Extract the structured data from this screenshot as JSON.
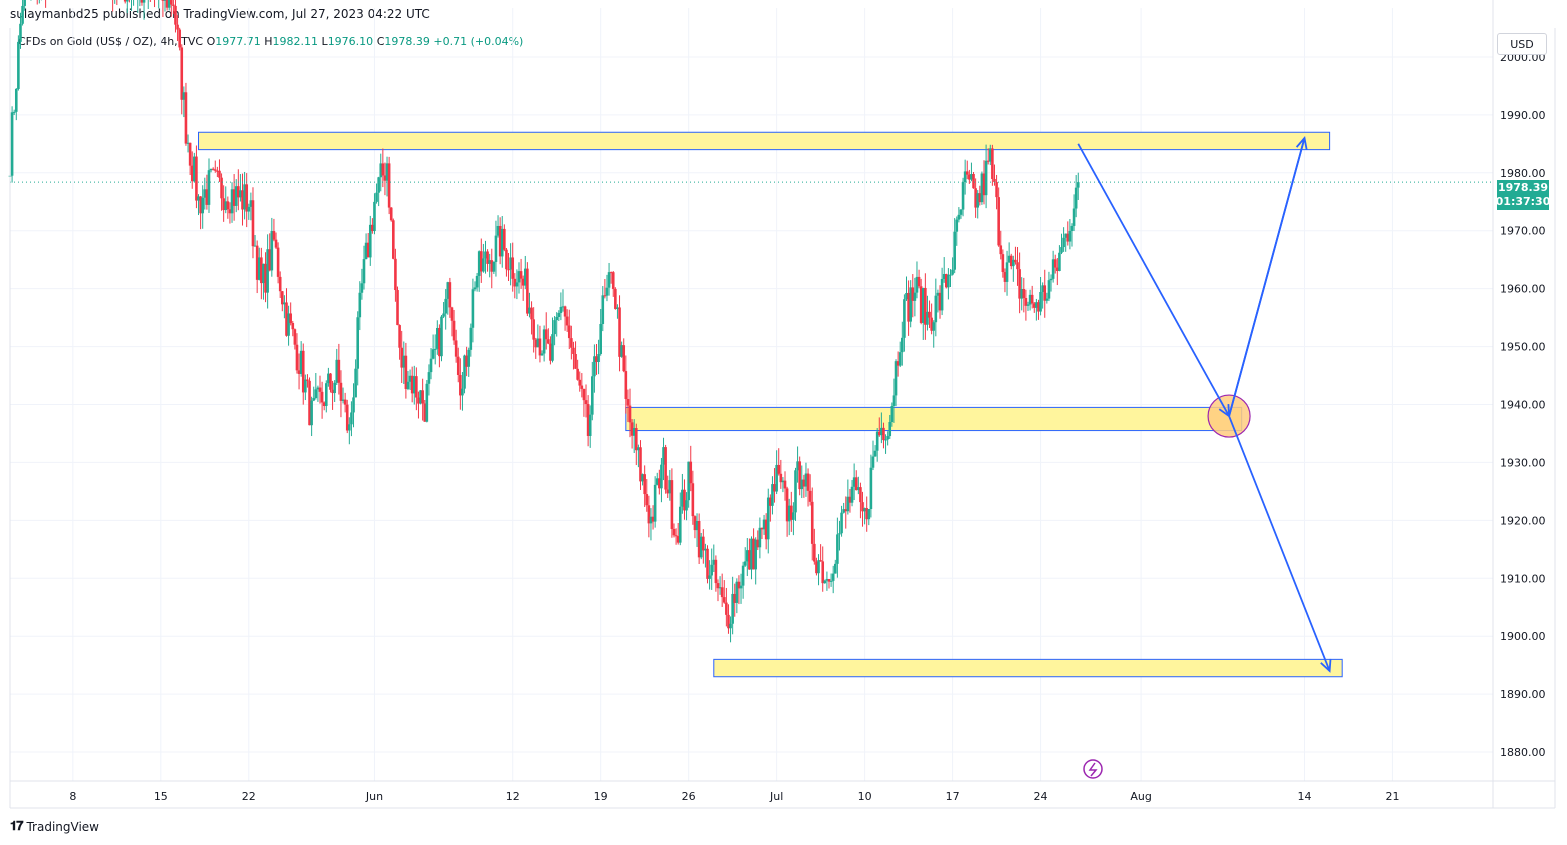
{
  "publisher": "sulaymanbd25 published on TradingView.com, Jul 27, 2023 04:22 UTC",
  "symbol": {
    "name": "CFDs on Gold (US$ / OZ), 4h, TVC",
    "o_label": "O",
    "o": "1977.71",
    "h_label": "H",
    "h": "1982.11",
    "l_label": "L",
    "l": "1976.10",
    "c_label": "C",
    "c": "1978.39",
    "change": "+0.71 (+0.04%)"
  },
  "currency": "USD",
  "last_price": {
    "price": "1978.39",
    "countdown": "01:37:30"
  },
  "brand": "TradingView",
  "colors": {
    "up": "#22ab94",
    "down": "#f23645",
    "zone": "#fff59d",
    "zone_border": "#2962ff",
    "arrow": "#2962ff",
    "circle_fill": "#ffcc80",
    "circle_stroke": "#9c27b0",
    "grid": "#f0f3fa"
  },
  "chart_data": {
    "type": "candlestick",
    "y_axis": {
      "min": 1875,
      "max": 2005,
      "ticks": [
        2000,
        1990,
        1980,
        1970,
        1960,
        1950,
        1940,
        1930,
        1920,
        1910,
        1900,
        1890,
        1880
      ],
      "tick_labels": [
        "2000.00",
        "1990.00",
        "1980.00",
        "1970.00",
        "1960.00",
        "1950.00",
        "1940.00",
        "1930.00",
        "1920.00",
        "1910.00",
        "1900.00",
        "1890.00",
        "1880.00"
      ]
    },
    "x_axis": {
      "start": "2023-05-03",
      "end": "2023-08-29",
      "ticks": [
        {
          "date": "2023-05-08",
          "label": "8"
        },
        {
          "date": "2023-05-15",
          "label": "15"
        },
        {
          "date": "2023-05-22",
          "label": "22"
        },
        {
          "date": "2023-06-01",
          "label": "Jun"
        },
        {
          "date": "2023-06-12",
          "label": "12"
        },
        {
          "date": "2023-06-19",
          "label": "19"
        },
        {
          "date": "2023-06-26",
          "label": "26"
        },
        {
          "date": "2023-07-03",
          "label": "Jul"
        },
        {
          "date": "2023-07-10",
          "label": "10"
        },
        {
          "date": "2023-07-17",
          "label": "17"
        },
        {
          "date": "2023-07-24",
          "label": "24"
        },
        {
          "date": "2023-08-01",
          "label": "Aug"
        },
        {
          "date": "2023-08-14",
          "label": "14"
        },
        {
          "date": "2023-08-21",
          "label": "21"
        }
      ]
    },
    "path": [
      [
        "2023-05-03",
        1983
      ],
      [
        "2023-05-04",
        2010
      ],
      [
        "2023-05-08",
        2020
      ],
      [
        "2023-05-12",
        2012
      ],
      [
        "2023-05-16",
        2010
      ],
      [
        "2023-05-17",
        1988
      ],
      [
        "2023-05-18",
        1975
      ],
      [
        "2023-05-19",
        1978
      ],
      [
        "2023-05-22",
        1975
      ],
      [
        "2023-05-23",
        1960
      ],
      [
        "2023-05-24",
        1968
      ],
      [
        "2023-05-25",
        1955
      ],
      [
        "2023-05-26",
        1948
      ],
      [
        "2023-05-27",
        1938
      ],
      [
        "2023-05-29",
        1945
      ],
      [
        "2023-05-30",
        1935
      ],
      [
        "2023-05-31",
        1960
      ],
      [
        "2023-06-01",
        1975
      ],
      [
        "2023-06-02",
        1982
      ],
      [
        "2023-06-03",
        1948
      ],
      [
        "2023-06-05",
        1940
      ],
      [
        "2023-06-07",
        1960
      ],
      [
        "2023-06-08",
        1942
      ],
      [
        "2023-06-09",
        1962
      ],
      [
        "2023-06-11",
        1968
      ],
      [
        "2023-06-13",
        1960
      ],
      [
        "2023-06-14",
        1952
      ],
      [
        "2023-06-15",
        1948
      ],
      [
        "2023-06-16",
        1958
      ],
      [
        "2023-06-17",
        1945
      ],
      [
        "2023-06-18",
        1935
      ],
      [
        "2023-06-19",
        1955
      ],
      [
        "2023-06-20",
        1962
      ],
      [
        "2023-06-21",
        1940
      ],
      [
        "2023-06-22",
        1930
      ],
      [
        "2023-06-23",
        1920
      ],
      [
        "2023-06-24",
        1930
      ],
      [
        "2023-06-25",
        1918
      ],
      [
        "2023-06-26",
        1927
      ],
      [
        "2023-06-27",
        1915
      ],
      [
        "2023-06-28",
        1910
      ],
      [
        "2023-06-29",
        1903
      ],
      [
        "2023-06-30",
        1910
      ],
      [
        "2023-07-02",
        1918
      ],
      [
        "2023-07-03",
        1927
      ],
      [
        "2023-07-04",
        1921
      ],
      [
        "2023-07-05",
        1930
      ],
      [
        "2023-07-06",
        1915
      ],
      [
        "2023-07-07",
        1910
      ],
      [
        "2023-07-08",
        1918
      ],
      [
        "2023-07-09",
        1925
      ],
      [
        "2023-07-10",
        1920
      ],
      [
        "2023-07-11",
        1935
      ],
      [
        "2023-07-12",
        1938
      ],
      [
        "2023-07-13",
        1955
      ],
      [
        "2023-07-14",
        1960
      ],
      [
        "2023-07-15",
        1955
      ],
      [
        "2023-07-16",
        1958
      ],
      [
        "2023-07-17",
        1965
      ],
      [
        "2023-07-18",
        1978
      ],
      [
        "2023-07-19",
        1975
      ],
      [
        "2023-07-20",
        1982
      ],
      [
        "2023-07-21",
        1965
      ],
      [
        "2023-07-22",
        1962
      ],
      [
        "2023-07-23",
        1957
      ],
      [
        "2023-07-24",
        1958
      ],
      [
        "2023-07-25",
        1962
      ],
      [
        "2023-07-26",
        1969
      ],
      [
        "2023-07-27",
        1978
      ]
    ],
    "zones": [
      {
        "from": "2023-05-18",
        "to": "2023-08-16",
        "low": 1984,
        "high": 1987
      },
      {
        "from": "2023-06-21",
        "to": "2023-08-09",
        "low": 1935.5,
        "high": 1939.5
      },
      {
        "from": "2023-06-28",
        "to": "2023-08-17",
        "low": 1893,
        "high": 1896
      }
    ],
    "projection": [
      {
        "date": "2023-07-27",
        "price": 1985
      },
      {
        "date": "2023-08-08",
        "price": 1938
      },
      {
        "date": "2023-08-14",
        "price": 1986
      },
      {
        "date": "2023-08-08",
        "price": 1938
      },
      {
        "date": "2023-08-16",
        "price": 1894
      }
    ],
    "circle": {
      "date": "2023-08-08",
      "price": 1938
    },
    "last_price": 1978.39
  }
}
